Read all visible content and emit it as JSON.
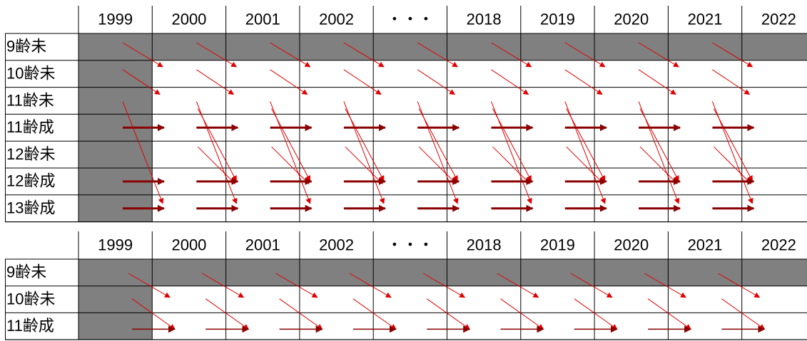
{
  "tables": [
    {
      "years": [
        "1999",
        "2000",
        "2001",
        "2002",
        "・・・",
        "2018",
        "2019",
        "2020",
        "2021",
        "2022"
      ],
      "rows": [
        "9齢未",
        "10齢未",
        "11齢未",
        "11齢成",
        "12齢未",
        "12齢成",
        "13齢成"
      ]
    },
    {
      "years": [
        "1999",
        "2000",
        "2001",
        "2002",
        "・・・",
        "2018",
        "2019",
        "2020",
        "2021",
        "2022"
      ],
      "rows": [
        "9齢未",
        "10齢未",
        "11齢成"
      ]
    }
  ]
}
